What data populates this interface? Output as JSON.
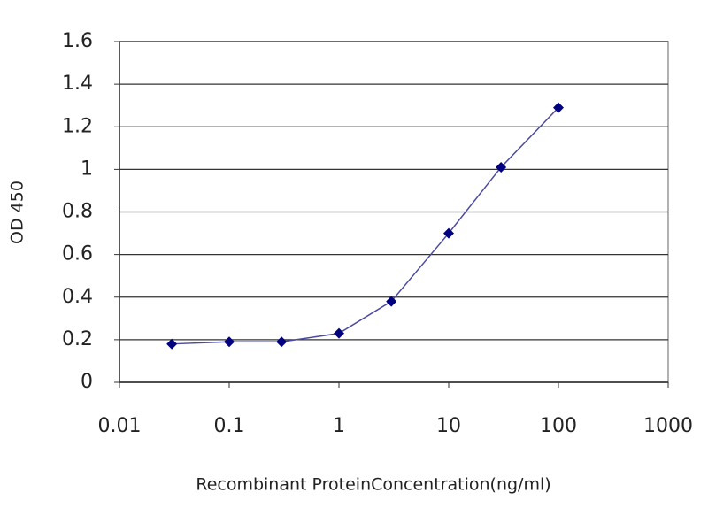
{
  "chart_data": {
    "type": "line",
    "x_label": "Recombinant ProteinConcentration(ng/ml)",
    "y_label": "OD 450",
    "x": [
      0.03,
      0.1,
      0.3,
      1,
      3,
      10,
      30,
      100
    ],
    "values": [
      0.18,
      0.19,
      0.19,
      0.23,
      0.38,
      0.7,
      1.01,
      1.29
    ],
    "color": "#000080",
    "line_color": "#4a4aa0",
    "xscale": "log",
    "xlim": [
      0.01,
      1000
    ],
    "xticks": [
      0.01,
      0.1,
      1,
      10,
      100,
      1000
    ],
    "ylim": [
      0,
      1.6
    ],
    "yticks": [
      0,
      0.2,
      0.4,
      0.6,
      0.8,
      1,
      1.2,
      1.4,
      1.6
    ],
    "grid": true
  }
}
